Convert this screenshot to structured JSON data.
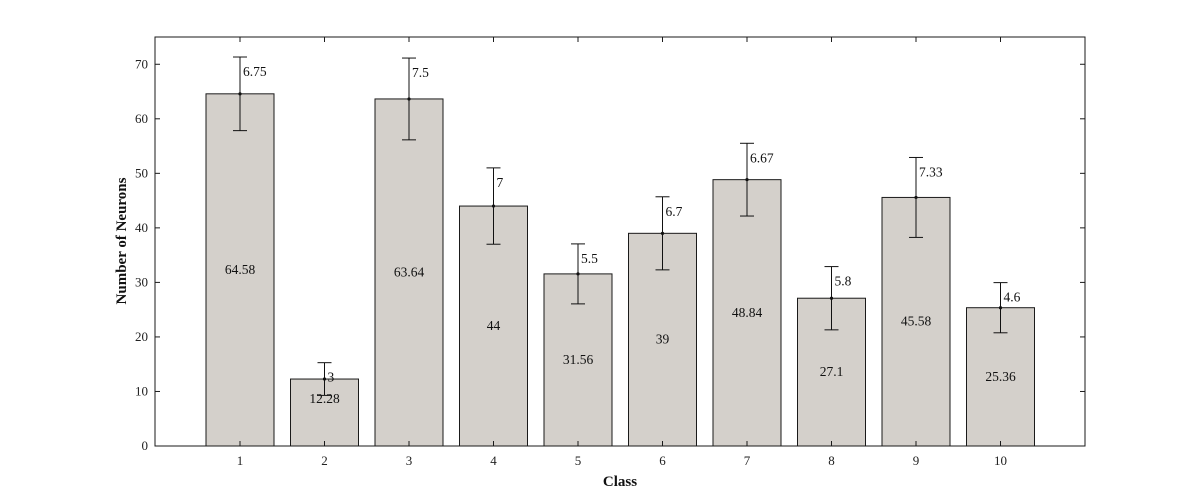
{
  "chart_data": {
    "type": "bar",
    "categories": [
      "1",
      "2",
      "3",
      "4",
      "5",
      "6",
      "7",
      "8",
      "9",
      "10"
    ],
    "values": [
      64.58,
      12.28,
      63.64,
      44,
      31.56,
      39,
      48.84,
      27.1,
      45.58,
      25.36
    ],
    "value_labels": [
      "64.58",
      "12.28",
      "63.64",
      "44",
      "31.56",
      "39",
      "48.84",
      "27.1",
      "45.58",
      "25.36"
    ],
    "errors": [
      6.75,
      3,
      7.5,
      7,
      5.5,
      6.7,
      6.67,
      5.8,
      7.33,
      4.6
    ],
    "error_labels": [
      "6.75",
      "3",
      "7.5",
      "7",
      "5.5",
      "6.7",
      "6.67",
      "5.8",
      "7.33",
      "4.6"
    ],
    "title": "",
    "xlabel": "Class",
    "ylabel": "Number of Neurons",
    "ylim": [
      0,
      75
    ],
    "yticks": [
      0,
      10,
      20,
      30,
      40,
      50,
      60,
      70
    ],
    "grid": false,
    "colors": {
      "bar_fill": "#d4d0cb",
      "bar_stroke": "#1a1a1a",
      "axis": "#1a1a1a"
    }
  }
}
